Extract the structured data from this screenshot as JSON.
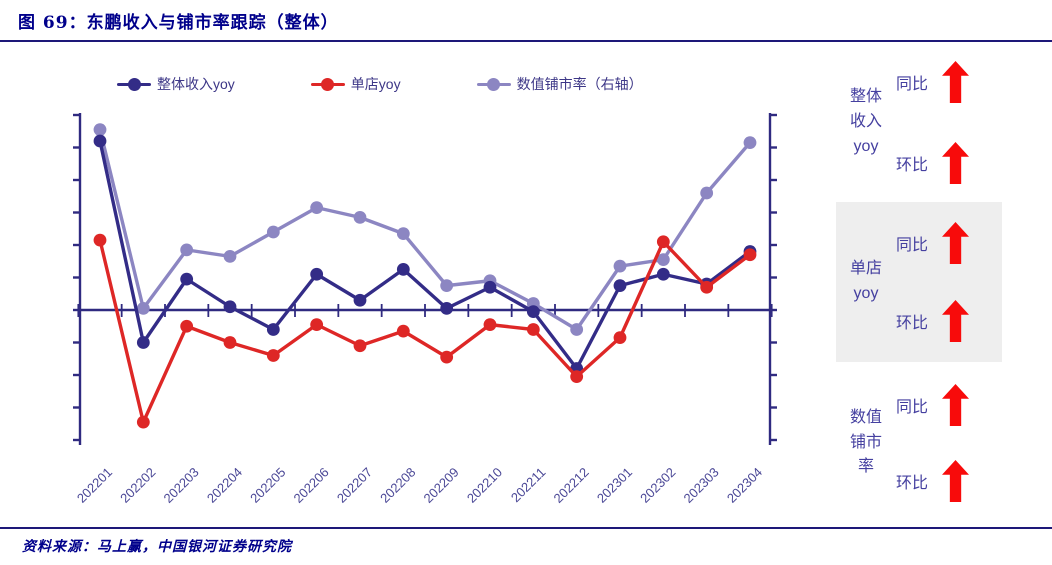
{
  "title": "图 69：东鹏收入与铺市率跟踪（整体）",
  "source": "资料来源：马上赢，中国银河证券研究院",
  "colors": {
    "accent_navy": "#00008B",
    "rule": "#1d1878",
    "axis": "#2F2A80",
    "x_labels": "#4A4796",
    "legend_text": "#3D3787",
    "panel_text": "#4540A0",
    "arrow_red": "#F80B0B",
    "highlight_bg": "#EEEEEE"
  },
  "chart_data": {
    "type": "line",
    "title": "",
    "xlabel": "",
    "ylabel": "",
    "categories": [
      "202201",
      "202202",
      "202203",
      "202204",
      "202205",
      "202206",
      "202207",
      "202208",
      "202209",
      "202210",
      "202211",
      "202212",
      "202301",
      "202302",
      "202303",
      "202304"
    ],
    "series": [
      {
        "name": "整体收入yoy",
        "axis": "left",
        "color": "#332C87",
        "values": [
          5.2,
          -1.0,
          0.95,
          0.1,
          -0.6,
          1.1,
          0.3,
          1.25,
          0.05,
          0.7,
          -0.05,
          -1.8,
          0.75,
          1.1,
          0.8,
          1.8
        ]
      },
      {
        "name": "单店yoy",
        "axis": "left",
        "color": "#DE2726",
        "values": [
          2.15,
          -3.45,
          -0.5,
          -1.0,
          -1.4,
          -0.45,
          -1.1,
          -0.65,
          -1.45,
          -0.45,
          -0.6,
          -2.05,
          -0.85,
          2.1,
          0.7,
          1.7
        ]
      },
      {
        "name": "数值铺市率（右轴）",
        "axis": "right",
        "color": "#8C86C2",
        "values": [
          5.55,
          0.05,
          1.85,
          1.65,
          2.4,
          3.15,
          2.85,
          2.35,
          0.75,
          0.9,
          0.2,
          -0.6,
          1.35,
          1.55,
          3.6,
          5.15
        ]
      }
    ],
    "ylim": [
      -4,
      6
    ],
    "tick_step": 1,
    "value_unit": "axis ticks (both axes show tick marks only, no numeric labels)",
    "grid": false,
    "legend_position": "top",
    "x_labels_rotation": -45,
    "zero_line": true
  },
  "panel": {
    "groups": [
      {
        "name": "整体\n收入\nyoy",
        "highlighted": false,
        "rows": [
          {
            "label": "同比",
            "arrow": "up"
          },
          {
            "label": "环比",
            "arrow": "up"
          }
        ]
      },
      {
        "name": "单店\nyoy",
        "highlighted": true,
        "rows": [
          {
            "label": "同比",
            "arrow": "up"
          },
          {
            "label": "环比",
            "arrow": "up"
          }
        ]
      },
      {
        "name": "数值\n铺市\n率",
        "highlighted": false,
        "rows": [
          {
            "label": "同比",
            "arrow": "up"
          },
          {
            "label": "环比",
            "arrow": "up"
          }
        ]
      }
    ]
  }
}
